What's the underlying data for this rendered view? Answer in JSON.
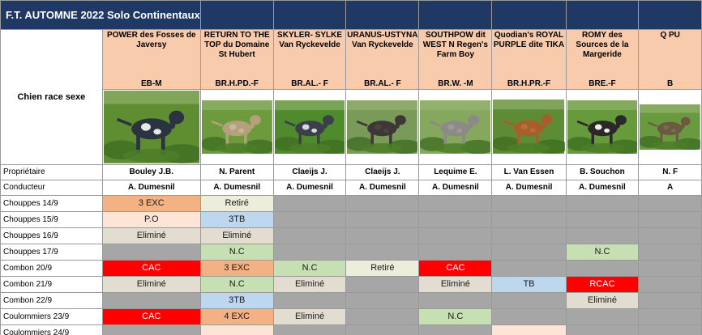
{
  "title": "F.T. AUTOMNE 2022 Solo Continentaux",
  "labels": {
    "chien": "Chien race sexe",
    "proprietaire": "Propriétaire",
    "conducteur": "Conducteur"
  },
  "dogs": [
    {
      "name": "POWER des Fosses de Javersy",
      "race": "EB-M",
      "owner": "Bouley J.B.",
      "handler": "A. Dumesnil",
      "photo": {
        "icon": "dog-photo-icon",
        "coat": "#2b3340",
        "spots": "#e8e8ea",
        "bg": "#5f8e32"
      }
    },
    {
      "name": "RETURN TO THE TOP du Domaine St Hubert",
      "race": "BR.H.PD.-F",
      "owner": "N. Parent",
      "handler": "A. Dumesnil",
      "photo": {
        "icon": "dog-photo-icon",
        "coat": "#b5a07e",
        "spots": "#c9b898",
        "bg": "#6c9a3c"
      }
    },
    {
      "name": "SKYLER- SYLKE Van Ryckevelde",
      "race": "BR.AL.- F",
      "owner": "Claeijs J.",
      "handler": "A. Dumesnil",
      "photo": {
        "icon": "dog-photo-icon",
        "coat": "#3a3f4a",
        "spots": "#d8d8dc",
        "bg": "#4f8a2c"
      }
    },
    {
      "name": "URANUS-USTYNA Van Ryckevelde",
      "race": "BR.AL.- F",
      "owner": "Claeijs J.",
      "handler": "A. Dumesnil",
      "photo": {
        "icon": "dog-photo-icon",
        "coat": "#3d3836",
        "spots": "#4c4440",
        "bg": "#7a9a5a"
      }
    },
    {
      "name": "SOUTHPOW dit WEST N Regen's Farm Boy",
      "race": "BR.W. -M",
      "owner": "Lequime E.",
      "handler": "A. Dumesnil",
      "photo": {
        "icon": "dog-photo-icon",
        "coat": "#8c8a86",
        "spots": "#9c9a95",
        "bg": "#86a85e"
      }
    },
    {
      "name": "Quodian's ROYAL PURPLE dite TIKA",
      "race": "BR.H.PR.-F",
      "owner": "L. Van Essen",
      "handler": "A. Dumesnil",
      "photo": {
        "icon": "dog-photo-icon",
        "coat": "#a85e2c",
        "spots": "#b86e38",
        "bg": "#5e8c36"
      }
    },
    {
      "name": "ROMY des Sources de la Margeride",
      "race": "BRE.-F",
      "owner": "B. Souchon",
      "handler": "A. Dumesnil",
      "photo": {
        "icon": "dog-photo-icon",
        "coat": "#2a2828",
        "spots": "#f0ece6",
        "bg": "#669a3a"
      }
    },
    {
      "name": "Q PU",
      "race": "B",
      "owner": "N. F",
      "handler": "A",
      "photo": {
        "icon": "dog-photo-icon",
        "coat": "#6a5a40",
        "spots": "#7a6a50",
        "bg": "#6a9a40"
      }
    }
  ],
  "events": [
    {
      "label": "Chouppes 14/9",
      "results": [
        "3 EXC",
        "Retiré",
        "",
        "",
        "",
        "",
        "",
        ""
      ]
    },
    {
      "label": "Chouppes 15/9",
      "results": [
        "P.O",
        "3TB",
        "",
        "",
        "",
        "",
        "",
        ""
      ]
    },
    {
      "label": "Chouppes 16/9",
      "results": [
        "Eliminé",
        "Eliminé",
        "",
        "",
        "",
        "",
        "",
        ""
      ]
    },
    {
      "label": "Chouppes 17/9",
      "results": [
        "",
        "N.C",
        "",
        "",
        "",
        "",
        "N.C",
        ""
      ]
    },
    {
      "label": "Combon 20/9",
      "results": [
        "CAC",
        "3 EXC",
        "N.C",
        "Retiré",
        "CAC",
        "",
        "",
        ""
      ]
    },
    {
      "label": "Combon 21/9",
      "results": [
        "Eliminé",
        "N.C",
        "Eliminé",
        "",
        "Eliminé",
        "TB",
        "RCAC",
        ""
      ]
    },
    {
      "label": "Combon 22/9",
      "results": [
        "",
        "3TB",
        "",
        "",
        "",
        "",
        "Eliminé",
        ""
      ]
    },
    {
      "label": "Coulommiers 23/9",
      "results": [
        "CAC",
        "4 EXC",
        "Eliminé",
        "",
        "N.C",
        "",
        "",
        ""
      ]
    },
    {
      "label": "Coulommiers 24/9",
      "results": [
        "",
        "",
        "",
        "",
        "",
        "",
        "",
        ""
      ]
    }
  ],
  "cell_colors": [
    [
      "#f4b183",
      "#ededdb",
      "#a6a6a6",
      "#a6a6a6",
      "#a6a6a6",
      "#a6a6a6",
      "#a6a6a6",
      "#a6a6a6"
    ],
    [
      "#fce4d6",
      "#bdd7ee",
      "#a6a6a6",
      "#a6a6a6",
      "#a6a6a6",
      "#a6a6a6",
      "#a6a6a6",
      "#a6a6a6"
    ],
    [
      "#e2ddd0",
      "#e2ddd0",
      "#a6a6a6",
      "#a6a6a6",
      "#a6a6a6",
      "#a6a6a6",
      "#a6a6a6",
      "#a6a6a6"
    ],
    [
      "#a6a6a6",
      "#c6e0b4",
      "#a6a6a6",
      "#a6a6a6",
      "#a6a6a6",
      "#a6a6a6",
      "#c6e0b4",
      "#a6a6a6"
    ],
    [
      "#ff0000",
      "#f4b183",
      "#c6e0b4",
      "#ededdb",
      "#ff0000",
      "#a6a6a6",
      "#a6a6a6",
      "#a6a6a6"
    ],
    [
      "#e2ddd0",
      "#c6e0b4",
      "#e2ddd0",
      "#a6a6a6",
      "#e2ddd0",
      "#bdd7ee",
      "#ff0000",
      "#a6a6a6"
    ],
    [
      "#a6a6a6",
      "#bdd7ee",
      "#a6a6a6",
      "#a6a6a6",
      "#a6a6a6",
      "#a6a6a6",
      "#e2ddd0",
      "#a6a6a6"
    ],
    [
      "#ff0000",
      "#f4b183",
      "#e2ddd0",
      "#a6a6a6",
      "#c6e0b4",
      "#a6a6a6",
      "#a6a6a6",
      "#a6a6a6"
    ],
    [
      "#a6a6a6",
      "#fce4d6",
      "#a6a6a6",
      "#a6a6a6",
      "#a6a6a6",
      "#fce4d6",
      "#a6a6a6",
      "#a6a6a6"
    ]
  ],
  "text_colors": {
    "red_cell": "#ffffff",
    "default": "#1a1a1a",
    "red_hex": "#ff0000"
  }
}
